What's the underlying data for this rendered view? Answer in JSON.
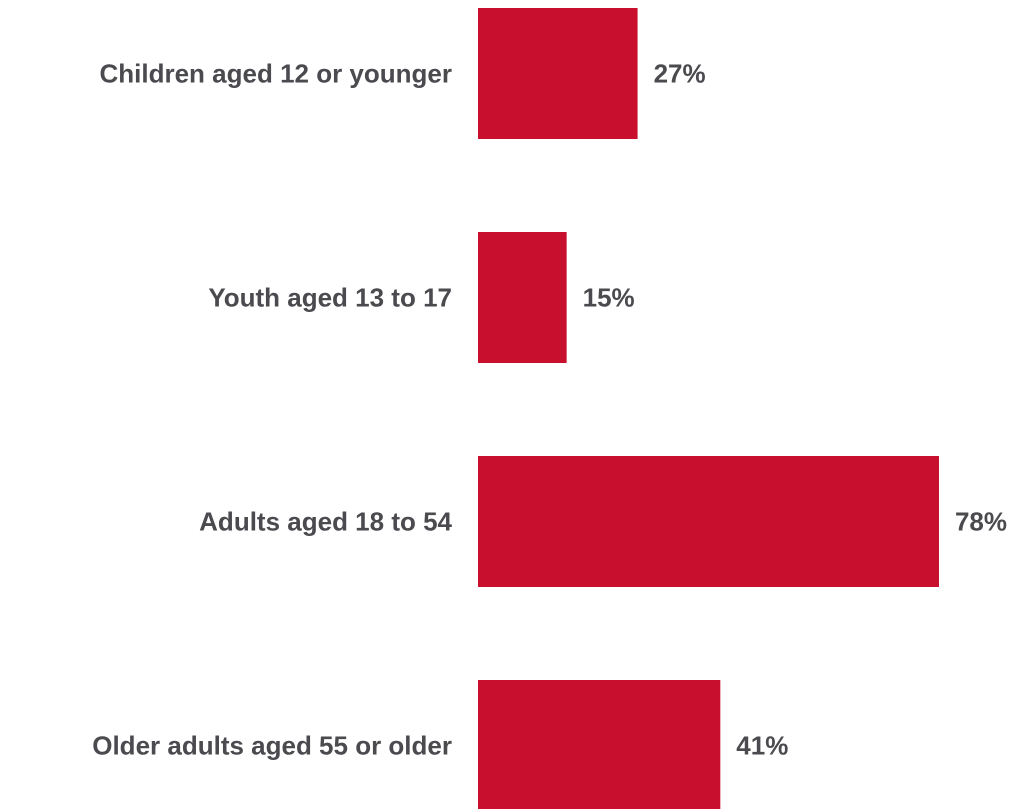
{
  "chart_data": {
    "type": "bar",
    "orientation": "horizontal",
    "categories": [
      "Children aged 12 or younger",
      "Youth aged 13 to 17",
      "Adults aged 18 to 54",
      "Older adults aged 55 or older"
    ],
    "values": [
      27,
      15,
      78,
      41
    ],
    "value_labels": [
      "27%",
      "15%",
      "78%",
      "41%"
    ],
    "unit": "%",
    "xlim": [
      0,
      100
    ],
    "grid": false,
    "legend": "none",
    "title": "",
    "xlabel": "",
    "ylabel": "",
    "colors": {
      "bar": "#c8102e",
      "text": "#4a4a4f",
      "background": "#ffffff"
    }
  }
}
